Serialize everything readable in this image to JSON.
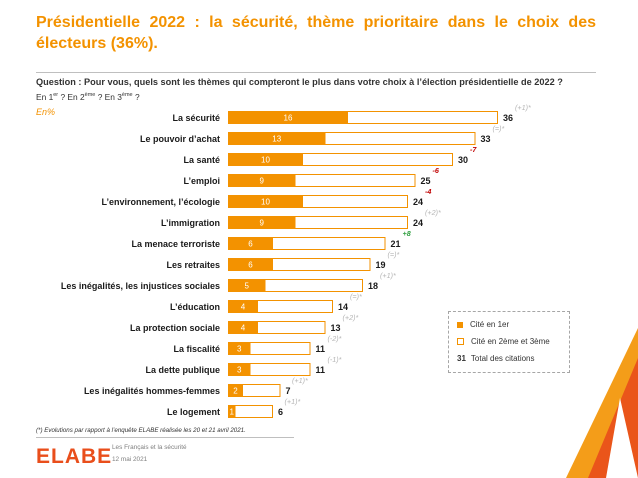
{
  "title": "Présidentielle 2022 : la sécurité, thème prioritaire dans le choix des électeurs (36%).",
  "question": "Question : Pour vous, quels sont les thèmes qui compteront le plus dans votre choix à l’élection présidentielle de 2022 ?",
  "rounds": {
    "p1": "En 1",
    "s1": "er",
    "p2": " ? En 2",
    "s2": "ème",
    "p3": " ? En 3",
    "s3": "ème",
    "p4": " ?"
  },
  "unit": "En%",
  "legend": {
    "first": "Cité en 1er",
    "other": "Cité en 2ème et 3ème",
    "total_value": "31",
    "total_label": "Total des citations"
  },
  "footnote": "(*) Evolutions par rapport à l’enquête ELABE réalisée les 20 et 21 avril 2021.",
  "footer": {
    "logo": "ELABE",
    "line1": "Les Français et la sécurité",
    "line2": "12 mai 2021"
  },
  "colors": {
    "accent": "#f39200",
    "negative": "#c00000",
    "positive": "#2e9e3e",
    "neutral_evolution": "#b5b5b5"
  },
  "chart_data": {
    "type": "bar",
    "orientation": "horizontal",
    "stacked": true,
    "categories": [
      "La sécurité",
      "Le pouvoir d’achat",
      "La santé",
      "L’emploi",
      "L’environnement, l’écologie",
      "L’immigration",
      "La menace terroriste",
      "Les retraites",
      "Les inégalités, les injustices sociales",
      "L’éducation",
      "La protection sociale",
      "La fiscalité",
      "La dette publique",
      "Les inégalités hommes-femmes",
      "Le logement"
    ],
    "series": [
      {
        "name": "Cité en 1er",
        "values": [
          16,
          13,
          10,
          9,
          10,
          9,
          6,
          6,
          5,
          4,
          4,
          3,
          3,
          2,
          1
        ]
      },
      {
        "name": "Cité en 2ème et 3ème",
        "values": [
          20,
          20,
          20,
          16,
          14,
          15,
          15,
          13,
          13,
          10,
          9,
          8,
          8,
          5,
          5
        ]
      }
    ],
    "totals": [
      36,
      33,
      30,
      25,
      24,
      24,
      21,
      19,
      18,
      14,
      13,
      11,
      11,
      7,
      6
    ],
    "total_series_name": "Total des citations",
    "evolutions": [
      "(+1)*",
      "(=)*",
      "-7",
      "-6",
      "-4",
      "(+2)*",
      "+8",
      "(=)*",
      "(+1)*",
      "(=)*",
      "(+2)*",
      "(-2)*",
      "(-1)*",
      "(+1)*",
      "(+1)*"
    ],
    "evolution_types": [
      "neutral",
      "neutral",
      "negative",
      "negative",
      "negative",
      "neutral",
      "positive",
      "neutral",
      "neutral",
      "neutral",
      "neutral",
      "neutral",
      "neutral",
      "neutral",
      "neutral"
    ],
    "xlim": [
      0,
      40
    ]
  }
}
